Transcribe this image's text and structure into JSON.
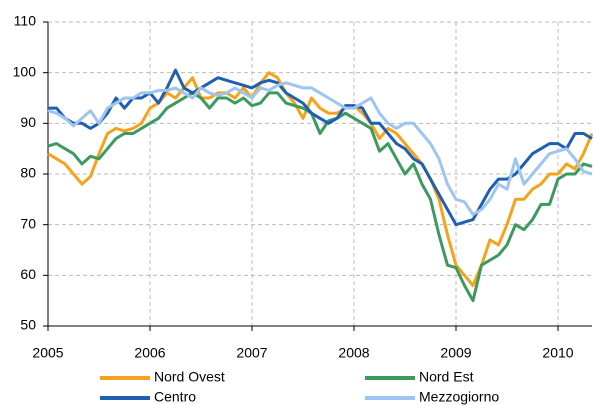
{
  "chart_data": {
    "type": "line",
    "categories": [
      "2005",
      null,
      null,
      null,
      null,
      null,
      null,
      null,
      null,
      null,
      null,
      null,
      "2006",
      null,
      null,
      null,
      null,
      null,
      null,
      null,
      null,
      null,
      null,
      null,
      "2007",
      null,
      null,
      null,
      null,
      null,
      null,
      null,
      null,
      null,
      null,
      null,
      "2008",
      null,
      null,
      null,
      null,
      null,
      null,
      null,
      null,
      null,
      null,
      null,
      "2009",
      null,
      null,
      null,
      null,
      null,
      null,
      null,
      null,
      null,
      null,
      null,
      "2010",
      null,
      null,
      null,
      null
    ],
    "ylim": [
      50,
      110
    ],
    "yticks": [
      50,
      60,
      70,
      80,
      90,
      100,
      110
    ],
    "grid": true,
    "legend": "bottom",
    "series": [
      {
        "name": "Nord Ovest",
        "color": "#f7a21b",
        "values": [
          84,
          83,
          82,
          80,
          78,
          79.5,
          84,
          88,
          89,
          88.5,
          89,
          90,
          93,
          94,
          96,
          95,
          97,
          99,
          95,
          95,
          96,
          96,
          95,
          97,
          95,
          98,
          100,
          99,
          96,
          94,
          91,
          95,
          93,
          92,
          92,
          93,
          93.5,
          92,
          90,
          87,
          89,
          88,
          86,
          84,
          82,
          79,
          75,
          68,
          62,
          60,
          58,
          62,
          67,
          66,
          70,
          75,
          75,
          77,
          78,
          80,
          80,
          82,
          81,
          84,
          88
        ]
      },
      {
        "name": "Nord Est",
        "color": "#3c9a5f",
        "values": [
          85.5,
          86,
          85,
          84,
          82,
          83.5,
          83,
          85,
          87,
          88,
          88,
          89,
          90,
          91,
          93,
          94,
          95,
          96,
          95,
          93,
          95,
          95,
          94,
          95,
          93.5,
          94,
          96,
          96,
          94,
          93.5,
          93,
          92,
          88,
          90.5,
          91,
          92,
          91,
          90,
          89,
          84.5,
          86,
          83,
          80,
          82,
          78,
          75,
          68,
          62,
          61.5,
          58,
          55,
          62,
          63,
          64,
          66,
          70,
          69,
          71,
          74,
          74,
          79,
          80,
          80,
          82,
          81.5
        ]
      },
      {
        "name": "Centro",
        "color": "#1f5fb0",
        "values": [
          93,
          93,
          91,
          90,
          90,
          89,
          90,
          92,
          95,
          93,
          95,
          95,
          96,
          94,
          97,
          100.5,
          97,
          96,
          97,
          98,
          99,
          98.5,
          98,
          97.5,
          97,
          98,
          98.5,
          98,
          96,
          95,
          94,
          92,
          91,
          90,
          91,
          93.5,
          93.5,
          93,
          90,
          90,
          88,
          86,
          85,
          83,
          82,
          79,
          76,
          73,
          70,
          70.5,
          71,
          74,
          77,
          79,
          79,
          80,
          82,
          84,
          85,
          86,
          86,
          85,
          88,
          88,
          87
        ]
      },
      {
        "name": "Mezzogiorno",
        "color": "#9ec5ef",
        "values": [
          92.5,
          92,
          91,
          89.5,
          91,
          92.5,
          90,
          93,
          94,
          95,
          95,
          96,
          96,
          96.5,
          96.5,
          97,
          96,
          95,
          97,
          96,
          95.5,
          96,
          97,
          96,
          95,
          97,
          96.5,
          97.5,
          98,
          97.5,
          97,
          97,
          96,
          95,
          94,
          93,
          93,
          94,
          95,
          92,
          90,
          89,
          90,
          90,
          88,
          86,
          83,
          78,
          75,
          74.5,
          72,
          73,
          75,
          78,
          77,
          83,
          78,
          80,
          82,
          84,
          84.5,
          85,
          83,
          80.5,
          80
        ]
      }
    ]
  }
}
